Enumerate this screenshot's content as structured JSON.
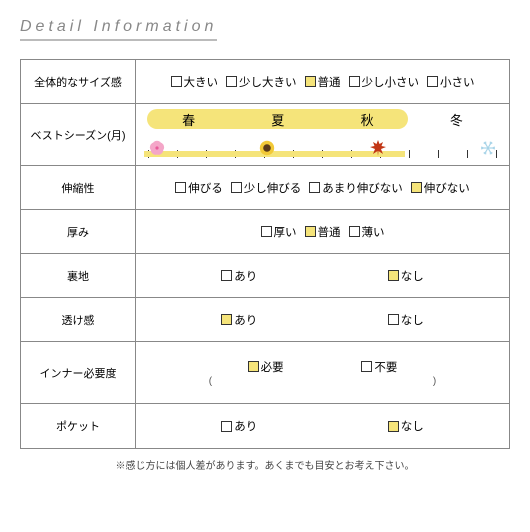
{
  "title": "Detail Information",
  "rows": [
    {
      "label": "全体的なサイズ感",
      "kind": "choice",
      "options": [
        {
          "text": "大きい",
          "checked": false
        },
        {
          "text": "少し大きい",
          "checked": false
        },
        {
          "text": "普通",
          "checked": true
        },
        {
          "text": "少し小さい",
          "checked": false
        },
        {
          "text": "小さい",
          "checked": false
        }
      ]
    },
    {
      "label": "ベストシーズン(月)",
      "kind": "season",
      "seasons": [
        "春",
        "夏",
        "秋",
        "冬"
      ],
      "highlight": {
        "left_pct": 3,
        "width_pct": 70
      },
      "icons": [
        "sakura",
        "sunflower",
        "maple",
        "snowflake"
      ],
      "tick_count": 12
    },
    {
      "label": "伸縮性",
      "kind": "choice",
      "options": [
        {
          "text": "伸びる",
          "checked": false
        },
        {
          "text": "少し伸びる",
          "checked": false
        },
        {
          "text": "あまり伸びない",
          "checked": false
        },
        {
          "text": "伸びない",
          "checked": true
        }
      ]
    },
    {
      "label": "厚み",
      "kind": "choice",
      "options": [
        {
          "text": "厚い",
          "checked": false
        },
        {
          "text": "普通",
          "checked": true
        },
        {
          "text": "薄い",
          "checked": false
        }
      ]
    },
    {
      "label": "裏地",
      "kind": "choice_spread",
      "options": [
        {
          "text": "あり",
          "checked": false
        },
        {
          "text": "なし",
          "checked": true
        }
      ]
    },
    {
      "label": "透け感",
      "kind": "choice_spread",
      "options": [
        {
          "text": "あり",
          "checked": true
        },
        {
          "text": "なし",
          "checked": false
        }
      ]
    },
    {
      "label": "インナー必要度",
      "kind": "choice_paren",
      "options": [
        {
          "text": "必要",
          "checked": true
        },
        {
          "text": "不要",
          "checked": false
        }
      ]
    },
    {
      "label": "ポケット",
      "kind": "choice_spread",
      "options": [
        {
          "text": "あり",
          "checked": false
        },
        {
          "text": "なし",
          "checked": true
        }
      ]
    }
  ],
  "footnote": "※感じ方には個人差があります。あくまでも目安とお考え下さい。",
  "colors": {
    "highlight": "#f5e47a",
    "border": "#888888",
    "text": "#333333",
    "timeline_hl": "#f5e47a",
    "footnote": "#444444"
  },
  "icon_colors": {
    "sakura": {
      "petal": "#f4a6c8",
      "center": "#e85a9a"
    },
    "sunflower": {
      "petal": "#f2c938",
      "center": "#5a3a1a"
    },
    "maple": "#c23616",
    "snowflake": "#a8d4e8"
  }
}
